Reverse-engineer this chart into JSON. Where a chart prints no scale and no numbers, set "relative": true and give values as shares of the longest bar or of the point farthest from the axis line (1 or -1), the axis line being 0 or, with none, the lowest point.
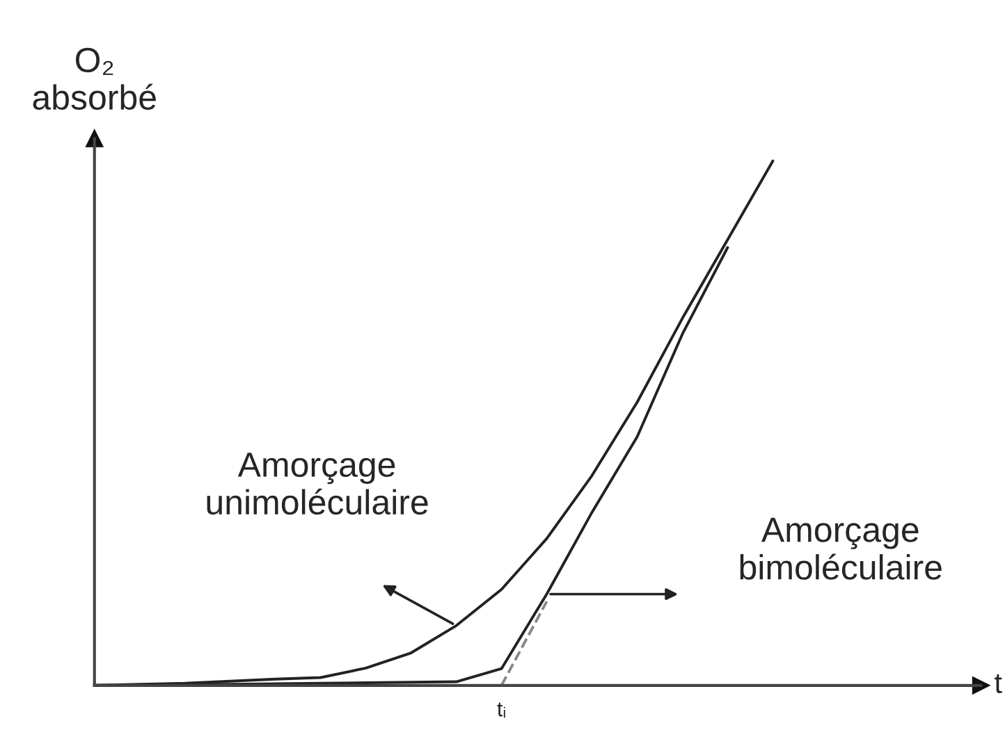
{
  "chart_data": {
    "type": "line",
    "relative": true,
    "ylabel": "O₂\nabsorbé",
    "xlabel": "t",
    "marker": "none",
    "categories": [
      null,
      null,
      null,
      null,
      null,
      null,
      null,
      null,
      null,
      null,
      null,
      null,
      null,
      null,
      null,
      null,
      null,
      null,
      null,
      null
    ],
    "series": [
      {
        "color": "#222222",
        "line_style": "solid",
        "values": [
          0,
          0.002,
          0.004,
          0.008,
          0.012,
          0.015,
          0.033,
          0.062,
          0.114,
          0.183,
          0.28,
          0.4,
          0.54,
          0.7,
          0.85,
          1.0,
          null,
          null,
          null,
          null
        ]
      },
      {
        "color": "#222222",
        "line_style": "solid",
        "values": [
          0,
          0.001,
          0.002,
          0.002,
          0.003,
          0.004,
          0.005,
          0.006,
          0.007,
          0.032,
          0.174,
          0.33,
          0.474,
          0.67,
          0.835,
          null,
          null,
          null,
          null,
          null
        ]
      },
      {
        "color": "#888888",
        "line_style": "dashed",
        "values": [
          null,
          null,
          null,
          null,
          null,
          null,
          null,
          null,
          null,
          0,
          0.16,
          null,
          null,
          null,
          null,
          null,
          null,
          null,
          null,
          null
        ]
      }
    ],
    "annotations": [
      "Amorçage\nunimoléculaire",
      "Amorçage\nbimoléculaire",
      "tᵢ"
    ]
  }
}
